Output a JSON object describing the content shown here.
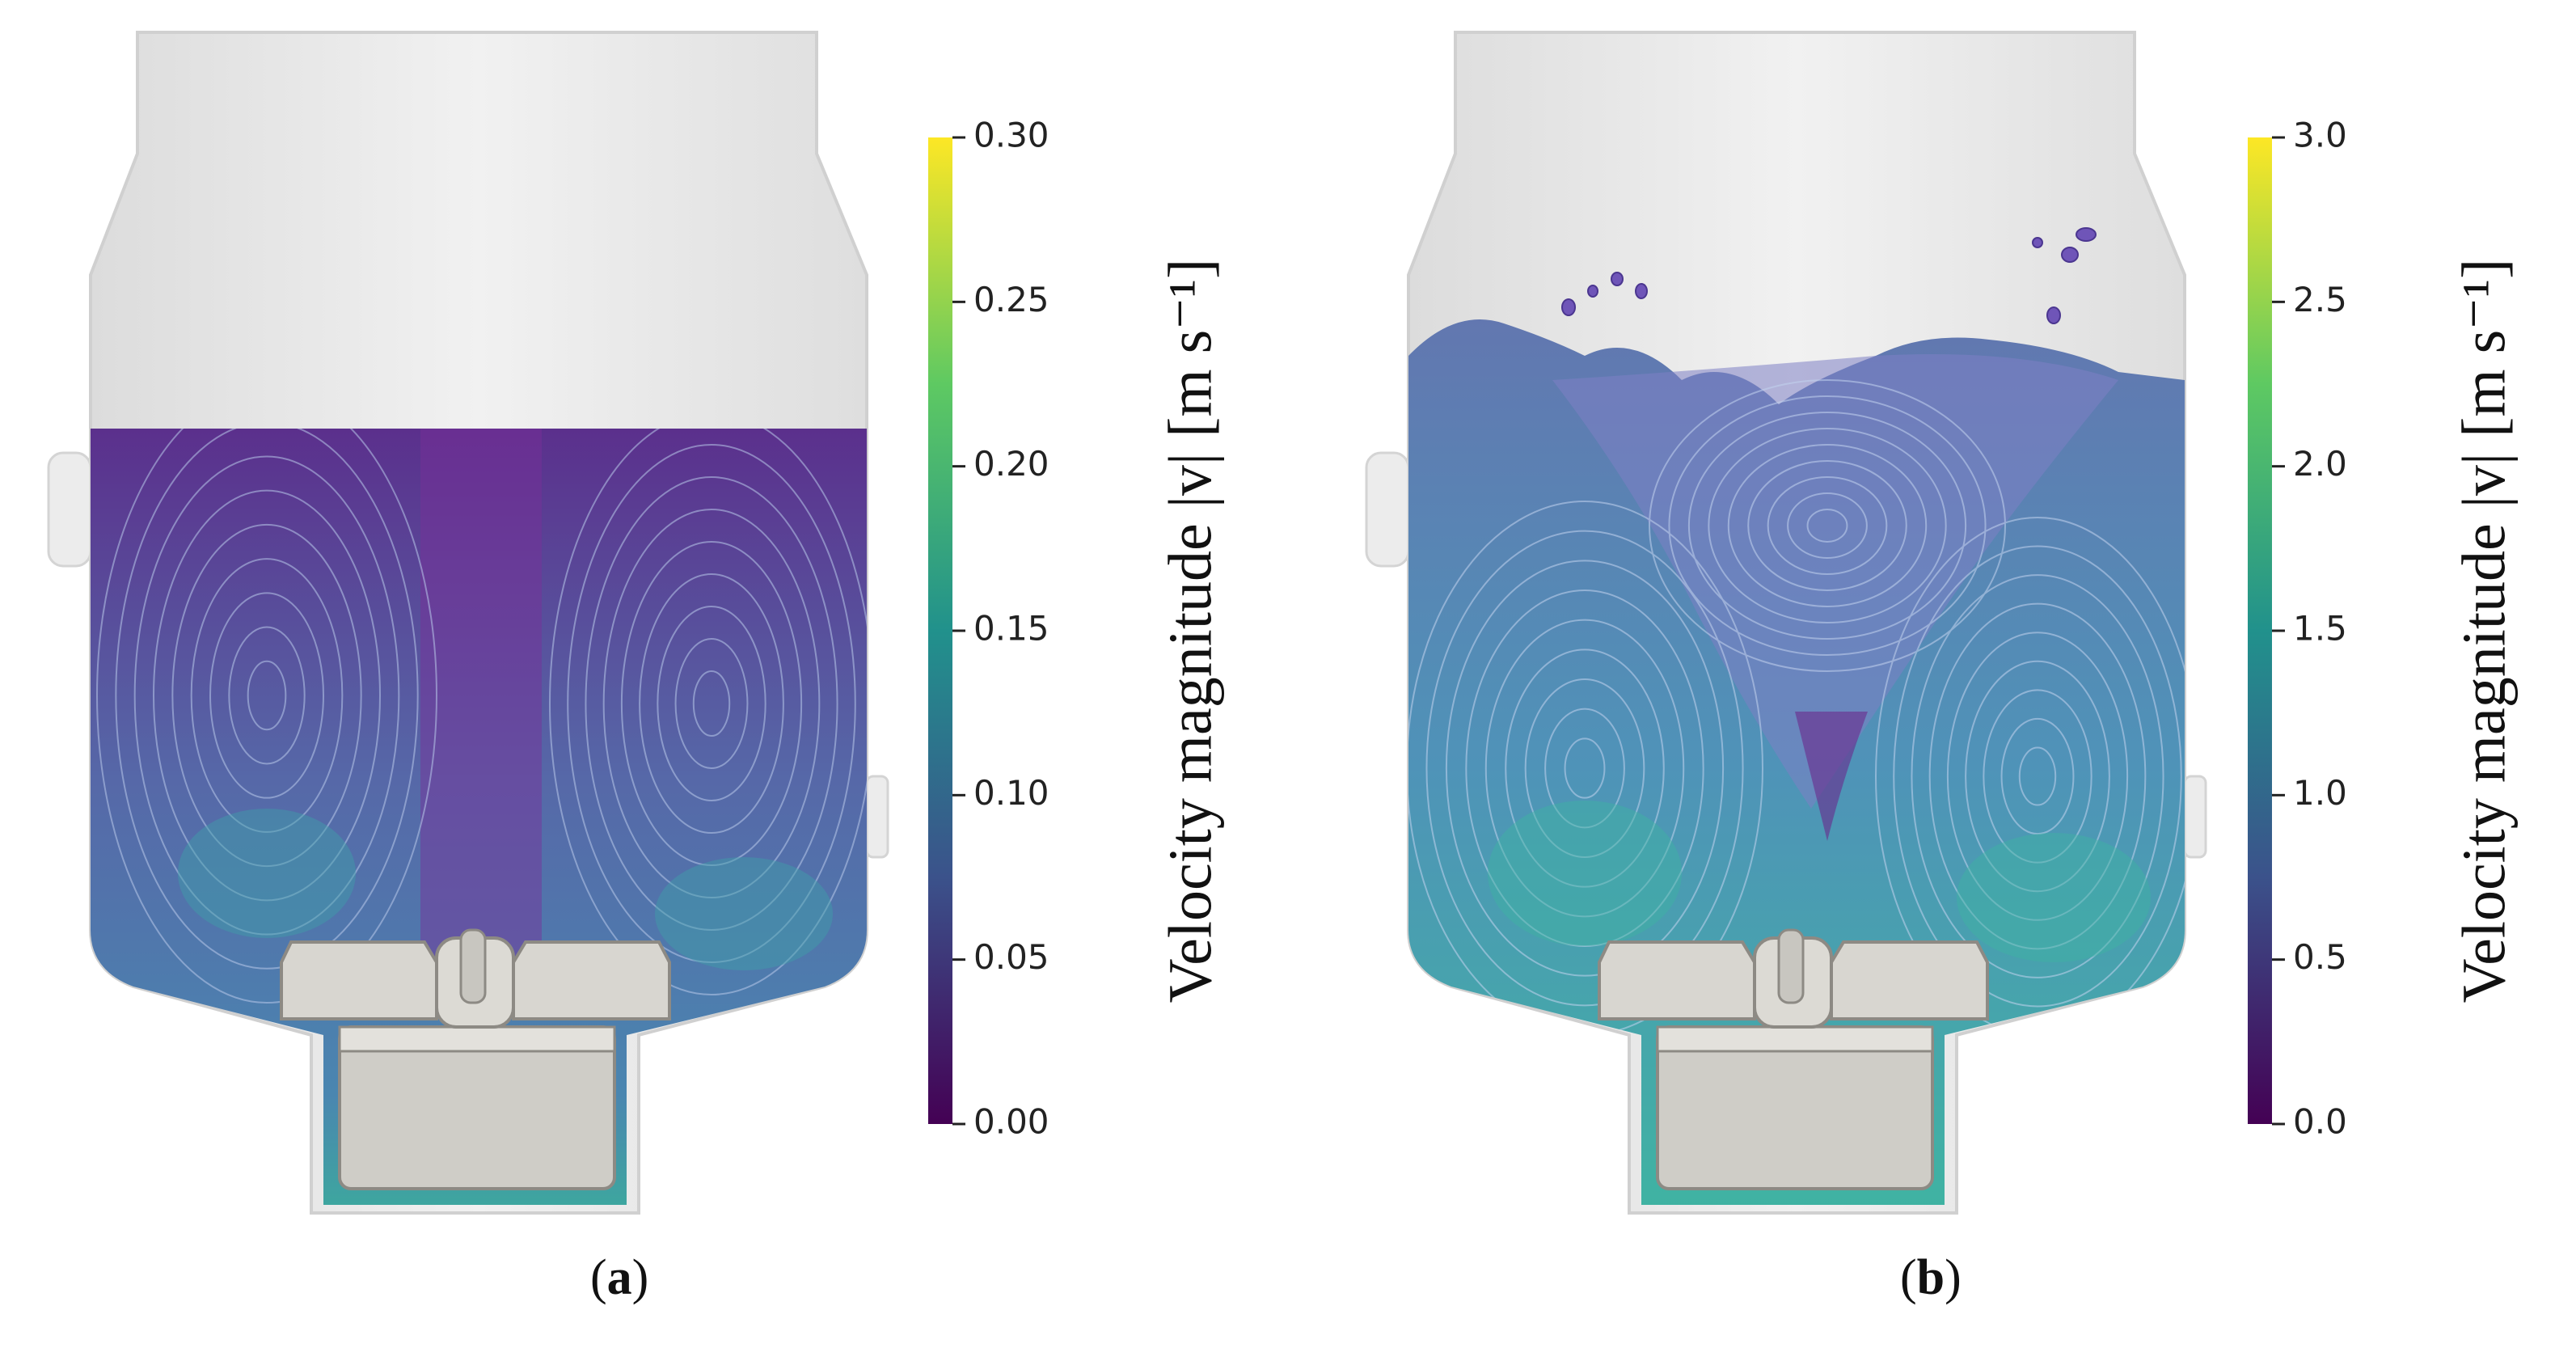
{
  "panels": [
    {
      "id": "a",
      "caption_open": "(",
      "caption_letter": "a",
      "caption_close": ")",
      "colorbar": {
        "title": "Velocity magnitude |v| [m s⁻¹]",
        "ticks": [
          "0.00",
          "0.05",
          "0.10",
          "0.15",
          "0.20",
          "0.25",
          "0.30"
        ],
        "min": 0.0,
        "max": 0.3
      },
      "fluid_fill_level": 0.0
    },
    {
      "id": "b",
      "caption_open": "(",
      "caption_letter": "b",
      "caption_close": ")",
      "colorbar": {
        "title": "Velocity magnitude |v| [m s⁻¹]",
        "ticks": [
          "0.0",
          "0.5",
          "1.0",
          "1.5",
          "2.0",
          "2.5",
          "3.0"
        ],
        "min": 0.0,
        "max": 3.0
      },
      "fluid_fill_level": 0.0
    }
  ],
  "colormap": [
    "#440154",
    "#3b528b",
    "#21918c",
    "#5ec962",
    "#fde725"
  ],
  "colors": {
    "vessel": "#e9e9e9",
    "vessel_edge": "#d6d6d6",
    "impeller": "#d3d1cb",
    "impeller_edge": "#8f8c86",
    "fluid_low": "#5a2a8a",
    "fluid_mid": "#4c7fb0",
    "fluid_high": "#3fb0a0"
  }
}
